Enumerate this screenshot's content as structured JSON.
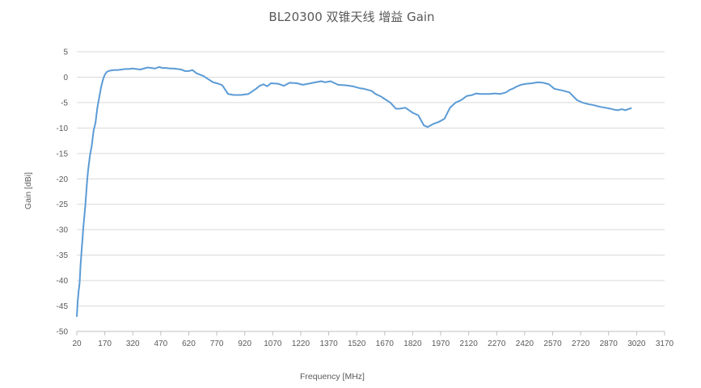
{
  "chart_data": {
    "type": "line",
    "title": "BL20300 双锥天线 增益 Gain",
    "xlabel": "Frequency [MHz]",
    "ylabel": "Gain [dBi]",
    "xlim": [
      20,
      3170
    ],
    "ylim": [
      -50,
      5
    ],
    "x_ticks": [
      20,
      170,
      320,
      470,
      620,
      770,
      920,
      1070,
      1220,
      1370,
      1520,
      1670,
      1820,
      1970,
      2120,
      2270,
      2420,
      2570,
      2720,
      2870,
      3020,
      3170
    ],
    "y_ticks": [
      5,
      0,
      -5,
      -10,
      -15,
      -20,
      -25,
      -30,
      -35,
      -40,
      -45,
      -50
    ],
    "grid": "horizontal",
    "legend": "none",
    "series_color": "#5b9bd5",
    "series": [
      {
        "x": [
          20,
          25,
          30,
          35,
          40,
          45,
          50,
          55,
          60,
          65,
          70,
          75,
          80,
          90,
          100,
          110,
          120,
          130,
          140,
          150,
          160,
          170,
          180,
          190,
          200,
          220,
          240,
          260,
          280,
          300,
          320,
          340,
          360,
          380,
          400,
          420,
          440,
          460,
          480,
          500,
          520,
          540,
          560,
          580,
          600,
          620,
          640,
          660,
          680,
          700,
          720,
          750,
          780,
          800,
          830,
          860,
          900,
          940,
          980,
          1000,
          1020,
          1040,
          1060,
          1100,
          1130,
          1160,
          1200,
          1230,
          1260,
          1300,
          1330,
          1350,
          1380,
          1420,
          1460,
          1500,
          1540,
          1560,
          1580,
          1600,
          1620,
          1650,
          1670,
          1700,
          1730,
          1750,
          1780,
          1800,
          1820,
          1850,
          1880,
          1900,
          1930,
          1960,
          1990,
          2020,
          2050,
          2080,
          2110,
          2140,
          2160,
          2180,
          2200,
          2230,
          2260,
          2290,
          2320,
          2340,
          2360,
          2380,
          2400,
          2430,
          2460,
          2490,
          2520,
          2550,
          2580,
          2620,
          2660,
          2700,
          2730,
          2760,
          2790,
          2820,
          2850,
          2880,
          2900,
          2920,
          2940,
          2960,
          2990
        ],
        "values": [
          -47,
          -44,
          -42,
          -40.5,
          -37,
          -34.5,
          -32,
          -29.5,
          -27.5,
          -25.5,
          -23,
          -20.5,
          -18.5,
          -15.5,
          -13.5,
          -10.5,
          -9,
          -6,
          -4,
          -2,
          -0.5,
          0.5,
          1,
          1.2,
          1.3,
          1.4,
          1.4,
          1.5,
          1.6,
          1.6,
          1.7,
          1.6,
          1.5,
          1.7,
          1.9,
          1.8,
          1.7,
          2,
          1.8,
          1.8,
          1.7,
          1.7,
          1.6,
          1.5,
          1.2,
          1.2,
          1.4,
          0.8,
          0.5,
          0.2,
          -0.3,
          -1,
          -1.3,
          -1.6,
          -3.3,
          -3.5,
          -3.5,
          -3.3,
          -2.3,
          -1.7,
          -1.4,
          -1.8,
          -1.2,
          -1.3,
          -1.7,
          -1.1,
          -1.2,
          -1.5,
          -1.3,
          -1,
          -0.8,
          -1,
          -0.8,
          -1.5,
          -1.6,
          -1.8,
          -2.2,
          -2.3,
          -2.5,
          -2.7,
          -3.3,
          -3.8,
          -4.3,
          -5,
          -6.2,
          -6.2,
          -6,
          -6.5,
          -7,
          -7.5,
          -9.5,
          -9.8,
          -9.2,
          -8.8,
          -8.2,
          -6,
          -5,
          -4.5,
          -3.7,
          -3.5,
          -3.2,
          -3.3,
          -3.3,
          -3.3,
          -3.2,
          -3.3,
          -3,
          -2.5,
          -2.2,
          -1.8,
          -1.5,
          -1.3,
          -1.2,
          -1,
          -1.1,
          -1.4,
          -2.3,
          -2.6,
          -3,
          -4.5,
          -5,
          -5.3,
          -5.5,
          -5.8,
          -6,
          -6.2,
          -6.4,
          -6.5,
          -6.3,
          -6.5,
          -6.1
        ]
      }
    ]
  }
}
